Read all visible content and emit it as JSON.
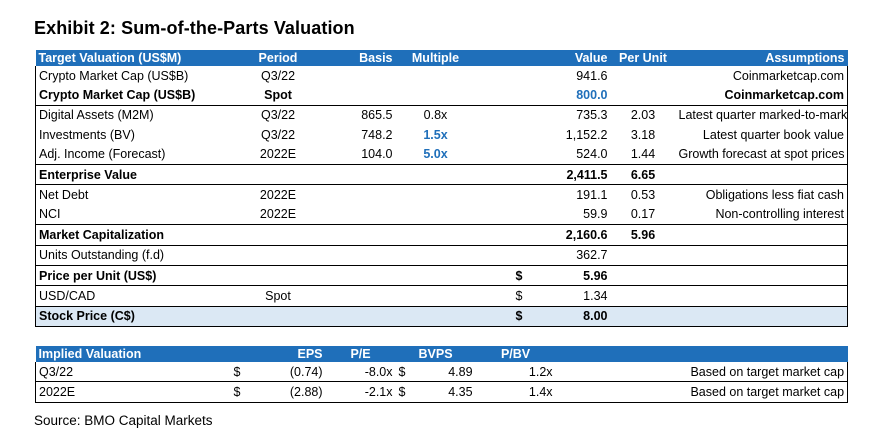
{
  "title": "Exhibit 2: Sum-of-the-Parts Valuation",
  "main_table": {
    "headers": [
      "Target Valuation (US$M)",
      "Period",
      "Basis",
      "Multiple",
      "",
      "Value",
      "Per Unit",
      "Assumptions"
    ],
    "rows": [
      [
        "Crypto Market Cap (US$B)",
        "Q3/22",
        "",
        "",
        "",
        "941.6",
        "",
        "Coinmarketcap.com"
      ],
      [
        "Crypto Market Cap (US$B)",
        "Spot",
        "",
        "",
        "",
        "800.0",
        "",
        "Coinmarketcap.com"
      ],
      [
        "Digital Assets (M2M)",
        "Q3/22",
        "865.5",
        "0.8x",
        "",
        "735.3",
        "2.03",
        "Latest quarter marked-to-market"
      ],
      [
        "Investments (BV)",
        "Q3/22",
        "748.2",
        "1.5x",
        "",
        "1,152.2",
        "3.18",
        "Latest quarter book value"
      ],
      [
        "Adj. Income (Forecast)",
        "2022E",
        "104.0",
        "5.0x",
        "",
        "524.0",
        "1.44",
        "Growth forecast at spot prices"
      ],
      [
        "Enterprise Value",
        "",
        "",
        "",
        "",
        "2,411.5",
        "6.65",
        ""
      ],
      [
        "Net Debt",
        "2022E",
        "",
        "",
        "",
        "191.1",
        "0.53",
        "Obligations less fiat cash"
      ],
      [
        "NCI",
        "2022E",
        "",
        "",
        "",
        "59.9",
        "0.17",
        "Non-controlling interest"
      ],
      [
        "Market Capitalization",
        "",
        "",
        "",
        "",
        "2,160.6",
        "5.96",
        ""
      ],
      [
        "Units Outstanding (f.d)",
        "",
        "",
        "",
        "",
        "362.7",
        "",
        ""
      ],
      [
        "Price per Unit (US$)",
        "",
        "",
        "",
        "$",
        "5.96",
        "",
        ""
      ],
      [
        "USD/CAD",
        "Spot",
        "",
        "",
        "$",
        "1.34",
        "",
        ""
      ],
      [
        "Stock Price (C$)",
        "",
        "",
        "",
        "$",
        "8.00",
        "",
        ""
      ]
    ]
  },
  "implied_table": {
    "headers": [
      "Implied Valuation",
      "EPS",
      "P/E",
      "BVPS",
      "P/BV",
      ""
    ],
    "rows": [
      [
        "Q3/22",
        "$",
        "(0.74)",
        "-8.0x",
        "$",
        "4.89",
        "1.2x",
        "Based on target market cap"
      ],
      [
        "2022E",
        "$",
        "(2.88)",
        "-2.1x",
        "$",
        "4.35",
        "1.4x",
        "Based on target market cap"
      ]
    ]
  },
  "source": "Source: BMO Capital Markets",
  "colors": {
    "header_blue": "#1f6fba",
    "highlight_blue": "#1f6fba",
    "shade": "#dbe8f4"
  }
}
